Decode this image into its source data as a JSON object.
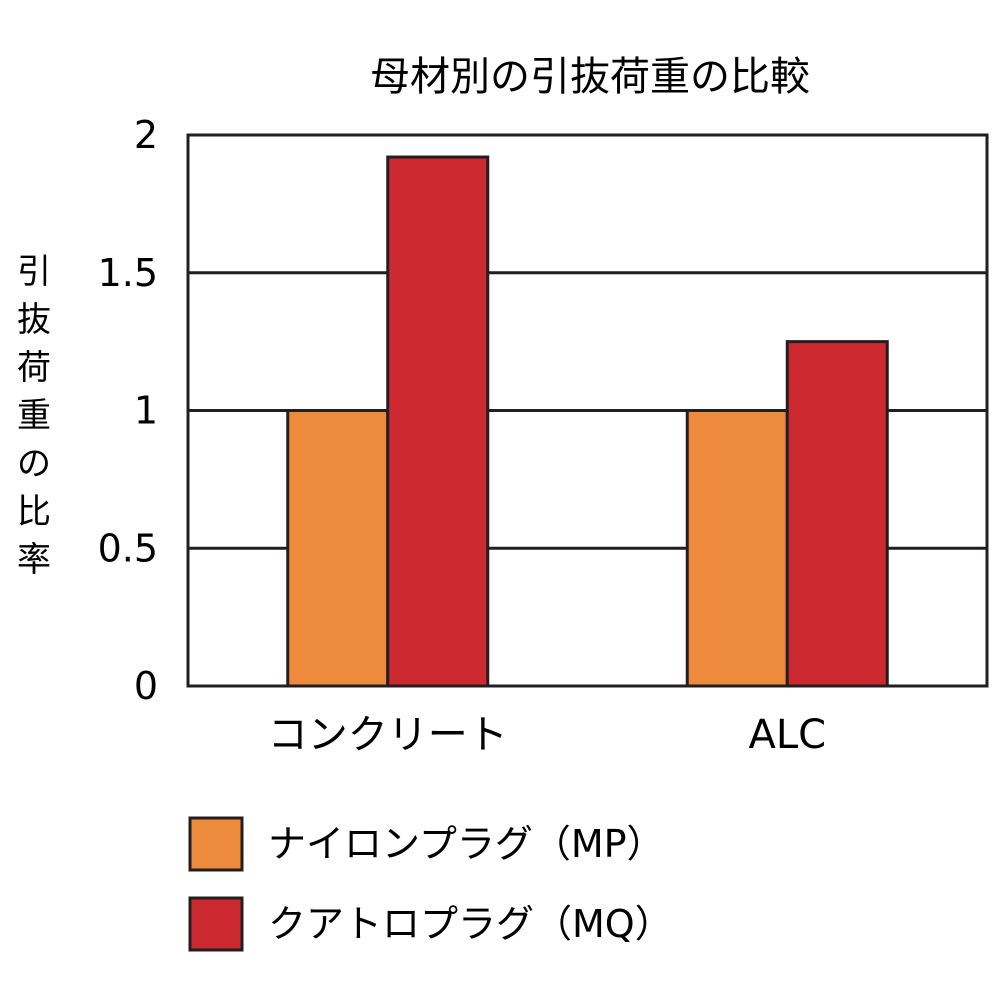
{
  "chart_data": {
    "type": "bar",
    "title": "母材別の引抜荷重の比較",
    "xlabel": "",
    "ylabel": "引抜荷重の比率",
    "categories": [
      "コンクリート",
      "ALC"
    ],
    "series": [
      {
        "name": "ナイロンプラグ（MP）",
        "values": [
          1.0,
          1.0
        ],
        "color": "#ee8a3c"
      },
      {
        "name": "クアトロプラグ（MQ）",
        "values": [
          1.92,
          1.25
        ],
        "color": "#cc2a30"
      }
    ],
    "ylim": [
      0,
      2
    ],
    "yticks": [
      0,
      0.5,
      1,
      1.5,
      2
    ],
    "ytick_labels": [
      "0",
      "0.5",
      "1",
      "1.5",
      "2"
    ],
    "grid": true,
    "legend_position": "bottom-left"
  }
}
